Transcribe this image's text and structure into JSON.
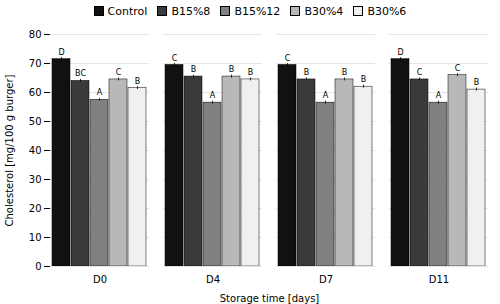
{
  "chart_data": {
    "type": "bar",
    "categories": [
      "D0",
      "D4",
      "D7",
      "D11"
    ],
    "series": [
      {
        "name": "Control",
        "color": "#111111",
        "values": [
          71.5,
          69.5,
          69.5,
          71.5
        ],
        "errors": [
          0.5,
          0.5,
          0.5,
          0.5
        ],
        "letters": [
          "D",
          "C",
          "C",
          "D"
        ]
      },
      {
        "name": "B15%8",
        "color": "#3a3a3a",
        "values": [
          64.0,
          65.5,
          64.5,
          64.5
        ],
        "errors": [
          0.5,
          0.5,
          0.5,
          0.5
        ],
        "letters": [
          "BC",
          "B",
          "B",
          "C"
        ]
      },
      {
        "name": "B15%12",
        "color": "#808080",
        "values": [
          57.5,
          56.5,
          56.5,
          56.5
        ],
        "errors": [
          0.5,
          0.5,
          0.5,
          0.5
        ],
        "letters": [
          "A",
          "A",
          "A",
          "A"
        ]
      },
      {
        "name": "B30%4",
        "color": "#b8b8b8",
        "values": [
          64.5,
          65.5,
          64.5,
          66.0
        ],
        "errors": [
          0.5,
          0.5,
          0.5,
          0.5
        ],
        "letters": [
          "C",
          "B",
          "B",
          "C"
        ]
      },
      {
        "name": "B30%6",
        "color": "#f0f0f0",
        "values": [
          61.5,
          64.5,
          62.0,
          61.0
        ],
        "errors": [
          0.5,
          0.5,
          0.5,
          0.5
        ],
        "letters": [
          "B",
          "B",
          "B",
          "B"
        ]
      }
    ],
    "xlabel": "Storage time [days]",
    "ylabel": "Cholesterol [mg/100 g burger]",
    "ylim": [
      0,
      80
    ],
    "yticks": [
      0,
      10,
      20,
      30,
      40,
      50,
      60,
      70,
      80
    ],
    "grid": true,
    "legend": "top"
  }
}
